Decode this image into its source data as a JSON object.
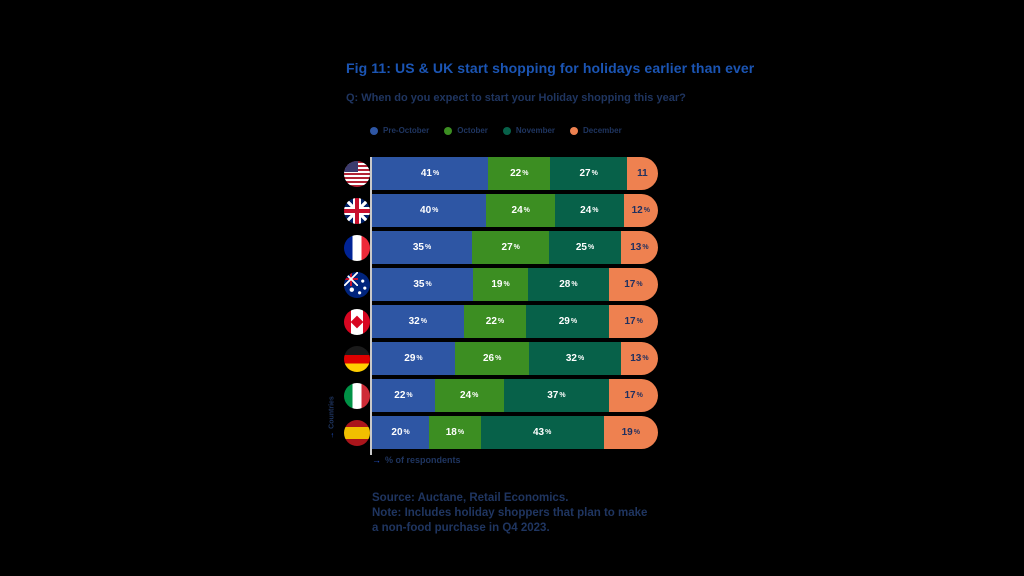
{
  "title": "Fig 11: US & UK start shopping for holidays earlier than ever",
  "question": "Q: When do you expect to start your Holiday shopping this year?",
  "chart_data": {
    "type": "bar",
    "subtype": "horizontal-stacked",
    "title": "Fig 11: US & UK start shopping for holidays earlier than ever",
    "legend": [
      "Pre-October",
      "October",
      "November",
      "December"
    ],
    "legend_position": "top",
    "colors": [
      "#2e56a4",
      "#3c8e22",
      "#076149",
      "#ee8150"
    ],
    "label_colors": [
      "#ffffff",
      "#ffffff",
      "#ffffff",
      "#1f3060"
    ],
    "xlabel": "% of respondents",
    "ylabel": "Countries",
    "xlim": [
      0,
      100
    ],
    "grid": false,
    "rows": [
      {
        "country": "United States",
        "flag": "us",
        "values": [
          41,
          22,
          27,
          11
        ],
        "labels": [
          "41%",
          "22%",
          "27%",
          "11"
        ]
      },
      {
        "country": "United Kingdom",
        "flag": "uk",
        "values": [
          40,
          24,
          24,
          12
        ],
        "labels": [
          "40%",
          "24%",
          "24%",
          "12%"
        ]
      },
      {
        "country": "France",
        "flag": "france",
        "values": [
          35,
          27,
          25,
          13
        ],
        "labels": [
          "35%",
          "27%",
          "25%",
          "13%"
        ]
      },
      {
        "country": "Australia",
        "flag": "australia",
        "values": [
          35,
          19,
          28,
          17
        ],
        "labels": [
          "35%",
          "19%",
          "28%",
          "17%"
        ]
      },
      {
        "country": "Canada",
        "flag": "canada",
        "values": [
          32,
          22,
          29,
          17
        ],
        "labels": [
          "32%",
          "22%",
          "29%",
          "17%"
        ]
      },
      {
        "country": "Germany",
        "flag": "germany",
        "values": [
          29,
          26,
          32,
          13
        ],
        "labels": [
          "29%",
          "26%",
          "32%",
          "13%"
        ]
      },
      {
        "country": "Italy",
        "flag": "italy",
        "values": [
          22,
          24,
          37,
          17
        ],
        "labels": [
          "22%",
          "24%",
          "37%",
          "17%"
        ]
      },
      {
        "country": "Spain",
        "flag": "spain",
        "values": [
          20,
          18,
          43,
          19
        ],
        "labels": [
          "20%",
          "18%",
          "43%",
          "19%"
        ]
      }
    ]
  },
  "axis_arrow": "→",
  "footer": {
    "lines": [
      "Source: Auctane, Retail Economics.",
      "Note: Includes holiday shoppers that plan to make",
      "a non-food purchase in Q4 2023."
    ]
  },
  "colors": {
    "background": "#000000",
    "title": "#1b55b4",
    "text": "#1f3560",
    "axis_line": "#c9c9c9",
    "arrow": "#2356d0"
  }
}
